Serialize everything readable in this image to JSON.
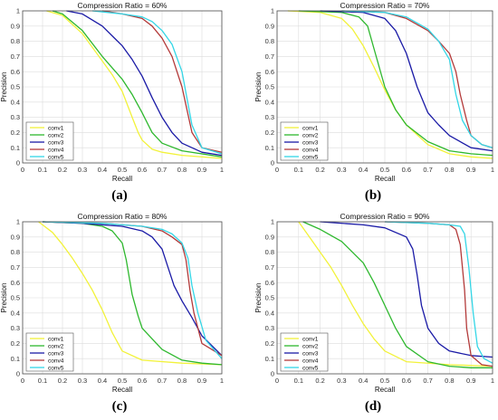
{
  "figure": {
    "labels": [
      "(a)",
      "(b)",
      "(c)",
      "(d)"
    ]
  },
  "colors": {
    "conv1": "#f2f23a",
    "conv2": "#2eb82e",
    "conv3": "#1a1aa6",
    "conv4": "#b33a3a",
    "conv5": "#33d6e6",
    "grid": "#dcdcdc",
    "axis": "#4d4d4d"
  },
  "chart_data": [
    {
      "type": "line",
      "title": "Compression Ratio = 60%",
      "xlabel": "Recall",
      "ylabel": "Precision",
      "xlim": [
        0,
        1
      ],
      "ylim": [
        0,
        1
      ],
      "xticks": [
        0,
        0.1,
        0.2,
        0.3,
        0.4,
        0.5,
        0.6,
        0.7,
        0.8,
        0.9,
        1
      ],
      "yticks": [
        0,
        0.1,
        0.2,
        0.3,
        0.4,
        0.5,
        0.6,
        0.7,
        0.8,
        0.9,
        1
      ],
      "grid": true,
      "legend": "bottom-left",
      "series": [
        {
          "name": "conv1",
          "x": [
            0.12,
            0.2,
            0.3,
            0.4,
            0.45,
            0.5,
            0.55,
            0.58,
            0.6,
            0.65,
            0.7,
            0.8,
            1.0
          ],
          "y": [
            1.0,
            0.97,
            0.85,
            0.67,
            0.58,
            0.47,
            0.3,
            0.2,
            0.15,
            0.09,
            0.07,
            0.05,
            0.03
          ]
        },
        {
          "name": "conv2",
          "x": [
            0.15,
            0.2,
            0.3,
            0.4,
            0.5,
            0.55,
            0.6,
            0.65,
            0.7,
            0.8,
            1.0
          ],
          "y": [
            1.0,
            0.98,
            0.87,
            0.7,
            0.55,
            0.45,
            0.33,
            0.2,
            0.13,
            0.08,
            0.04
          ]
        },
        {
          "name": "conv3",
          "x": [
            0.22,
            0.3,
            0.4,
            0.5,
            0.55,
            0.6,
            0.65,
            0.7,
            0.75,
            0.8,
            0.9,
            1.0
          ],
          "y": [
            1.0,
            0.98,
            0.9,
            0.77,
            0.68,
            0.57,
            0.43,
            0.3,
            0.2,
            0.13,
            0.07,
            0.05
          ]
        },
        {
          "name": "conv4",
          "x": [
            0.4,
            0.5,
            0.6,
            0.65,
            0.7,
            0.75,
            0.8,
            0.82,
            0.85,
            0.9,
            1.0
          ],
          "y": [
            1.0,
            0.98,
            0.95,
            0.9,
            0.82,
            0.7,
            0.5,
            0.38,
            0.2,
            0.1,
            0.07
          ]
        },
        {
          "name": "conv5",
          "x": [
            0.35,
            0.5,
            0.6,
            0.65,
            0.7,
            0.75,
            0.8,
            0.85,
            0.9,
            1.0
          ],
          "y": [
            1.0,
            0.98,
            0.96,
            0.93,
            0.87,
            0.78,
            0.6,
            0.25,
            0.1,
            0.06
          ]
        }
      ]
    },
    {
      "type": "line",
      "title": "Compression Ratio = 70%",
      "xlabel": "Recall",
      "ylabel": "Precision",
      "xlim": [
        0,
        1
      ],
      "ylim": [
        0,
        1
      ],
      "xticks": [
        0,
        0.1,
        0.2,
        0.3,
        0.4,
        0.5,
        0.6,
        0.7,
        0.8,
        0.9,
        1
      ],
      "yticks": [
        0,
        0.1,
        0.2,
        0.3,
        0.4,
        0.5,
        0.6,
        0.7,
        0.8,
        0.9,
        1
      ],
      "grid": true,
      "legend": "bottom-left",
      "series": [
        {
          "name": "conv1",
          "x": [
            0.05,
            0.2,
            0.3,
            0.35,
            0.4,
            0.45,
            0.5,
            0.55,
            0.6,
            0.7,
            0.8,
            0.9,
            1.0
          ],
          "y": [
            1.0,
            0.99,
            0.95,
            0.88,
            0.77,
            0.63,
            0.48,
            0.35,
            0.25,
            0.12,
            0.06,
            0.04,
            0.03
          ]
        },
        {
          "name": "conv2",
          "x": [
            0.1,
            0.3,
            0.38,
            0.42,
            0.45,
            0.5,
            0.55,
            0.6,
            0.7,
            0.8,
            0.9,
            1.0
          ],
          "y": [
            1.0,
            0.99,
            0.96,
            0.9,
            0.75,
            0.5,
            0.35,
            0.25,
            0.14,
            0.08,
            0.06,
            0.05
          ]
        },
        {
          "name": "conv3",
          "x": [
            0.2,
            0.4,
            0.5,
            0.55,
            0.6,
            0.65,
            0.7,
            0.75,
            0.8,
            0.9,
            1.0
          ],
          "y": [
            1.0,
            0.99,
            0.95,
            0.87,
            0.72,
            0.5,
            0.33,
            0.25,
            0.18,
            0.1,
            0.08
          ]
        },
        {
          "name": "conv4",
          "x": [
            0.3,
            0.5,
            0.6,
            0.7,
            0.75,
            0.8,
            0.83,
            0.85,
            0.88,
            0.9,
            0.95,
            1.0
          ],
          "y": [
            1.0,
            0.99,
            0.95,
            0.87,
            0.8,
            0.72,
            0.6,
            0.45,
            0.28,
            0.18,
            0.12,
            0.1
          ]
        },
        {
          "name": "conv5",
          "x": [
            0.3,
            0.5,
            0.6,
            0.7,
            0.75,
            0.8,
            0.83,
            0.86,
            0.9,
            0.95,
            1.0
          ],
          "y": [
            1.0,
            0.99,
            0.96,
            0.88,
            0.8,
            0.68,
            0.45,
            0.28,
            0.18,
            0.12,
            0.1
          ]
        }
      ]
    },
    {
      "type": "line",
      "title": "Compression Ratio = 80%",
      "xlabel": "Recall",
      "ylabel": "Precision",
      "xlim": [
        0,
        1
      ],
      "ylim": [
        0,
        1
      ],
      "xticks": [
        0,
        0.1,
        0.2,
        0.3,
        0.4,
        0.5,
        0.6,
        0.7,
        0.8,
        0.9,
        1
      ],
      "yticks": [
        0,
        0.1,
        0.2,
        0.3,
        0.4,
        0.5,
        0.6,
        0.7,
        0.8,
        0.9,
        1
      ],
      "grid": true,
      "legend": "bottom-left",
      "series": [
        {
          "name": "conv1",
          "x": [
            0.08,
            0.15,
            0.2,
            0.25,
            0.3,
            0.35,
            0.4,
            0.45,
            0.5,
            0.6,
            0.8,
            1.0
          ],
          "y": [
            1.0,
            0.93,
            0.85,
            0.76,
            0.66,
            0.55,
            0.42,
            0.27,
            0.15,
            0.09,
            0.07,
            0.06
          ]
        },
        {
          "name": "conv2",
          "x": [
            0.1,
            0.3,
            0.4,
            0.45,
            0.5,
            0.52,
            0.55,
            0.58,
            0.6,
            0.7,
            0.8,
            0.9,
            1.0
          ],
          "y": [
            1.0,
            0.99,
            0.97,
            0.94,
            0.86,
            0.75,
            0.52,
            0.38,
            0.3,
            0.16,
            0.09,
            0.07,
            0.06
          ]
        },
        {
          "name": "conv3",
          "x": [
            0.1,
            0.3,
            0.5,
            0.6,
            0.65,
            0.7,
            0.73,
            0.76,
            0.8,
            0.85,
            0.9,
            1.0
          ],
          "y": [
            1.0,
            0.99,
            0.97,
            0.94,
            0.9,
            0.82,
            0.7,
            0.58,
            0.48,
            0.37,
            0.25,
            0.12
          ]
        },
        {
          "name": "conv4",
          "x": [
            0.1,
            0.4,
            0.6,
            0.7,
            0.75,
            0.8,
            0.82,
            0.84,
            0.86,
            0.9,
            1.0
          ],
          "y": [
            1.0,
            0.99,
            0.97,
            0.94,
            0.9,
            0.85,
            0.75,
            0.55,
            0.4,
            0.2,
            0.12
          ]
        },
        {
          "name": "conv5",
          "x": [
            0.1,
            0.4,
            0.6,
            0.7,
            0.75,
            0.8,
            0.83,
            0.85,
            0.88,
            0.92,
            1.0
          ],
          "y": [
            1.0,
            0.99,
            0.97,
            0.95,
            0.92,
            0.86,
            0.76,
            0.58,
            0.4,
            0.22,
            0.1
          ]
        }
      ]
    },
    {
      "type": "line",
      "title": "Compression Ratio = 90%",
      "xlabel": "Recall",
      "ylabel": "Precision",
      "xlim": [
        0,
        1
      ],
      "ylim": [
        0,
        1
      ],
      "xticks": [
        0,
        0.1,
        0.2,
        0.3,
        0.4,
        0.5,
        0.6,
        0.7,
        0.8,
        0.9,
        1
      ],
      "yticks": [
        0,
        0.1,
        0.2,
        0.3,
        0.4,
        0.5,
        0.6,
        0.7,
        0.8,
        0.9,
        1
      ],
      "grid": true,
      "legend": "bottom-left",
      "series": [
        {
          "name": "conv1",
          "x": [
            0.1,
            0.15,
            0.2,
            0.25,
            0.3,
            0.35,
            0.4,
            0.45,
            0.5,
            0.6,
            0.8,
            1.0
          ],
          "y": [
            1.0,
            0.9,
            0.8,
            0.7,
            0.58,
            0.45,
            0.33,
            0.23,
            0.15,
            0.08,
            0.06,
            0.05
          ]
        },
        {
          "name": "conv2",
          "x": [
            0.12,
            0.2,
            0.3,
            0.4,
            0.45,
            0.5,
            0.55,
            0.6,
            0.7,
            0.8,
            0.9,
            1.0
          ],
          "y": [
            1.0,
            0.95,
            0.87,
            0.73,
            0.6,
            0.45,
            0.3,
            0.18,
            0.08,
            0.05,
            0.04,
            0.04
          ]
        },
        {
          "name": "conv3",
          "x": [
            0.2,
            0.4,
            0.5,
            0.6,
            0.63,
            0.65,
            0.67,
            0.7,
            0.75,
            0.8,
            0.9,
            1.0
          ],
          "y": [
            1.0,
            0.98,
            0.96,
            0.9,
            0.82,
            0.65,
            0.45,
            0.3,
            0.2,
            0.15,
            0.12,
            0.11
          ]
        },
        {
          "name": "conv4",
          "x": [
            0.5,
            0.7,
            0.8,
            0.83,
            0.85,
            0.87,
            0.88,
            0.9,
            0.95,
            1.0
          ],
          "y": [
            1.0,
            0.99,
            0.98,
            0.95,
            0.85,
            0.55,
            0.3,
            0.12,
            0.06,
            0.05
          ]
        },
        {
          "name": "conv5",
          "x": [
            0.5,
            0.7,
            0.8,
            0.85,
            0.87,
            0.89,
            0.91,
            0.93,
            0.96,
            1.0
          ],
          "y": [
            1.0,
            0.99,
            0.98,
            0.97,
            0.92,
            0.7,
            0.4,
            0.18,
            0.1,
            0.07
          ]
        }
      ]
    }
  ]
}
